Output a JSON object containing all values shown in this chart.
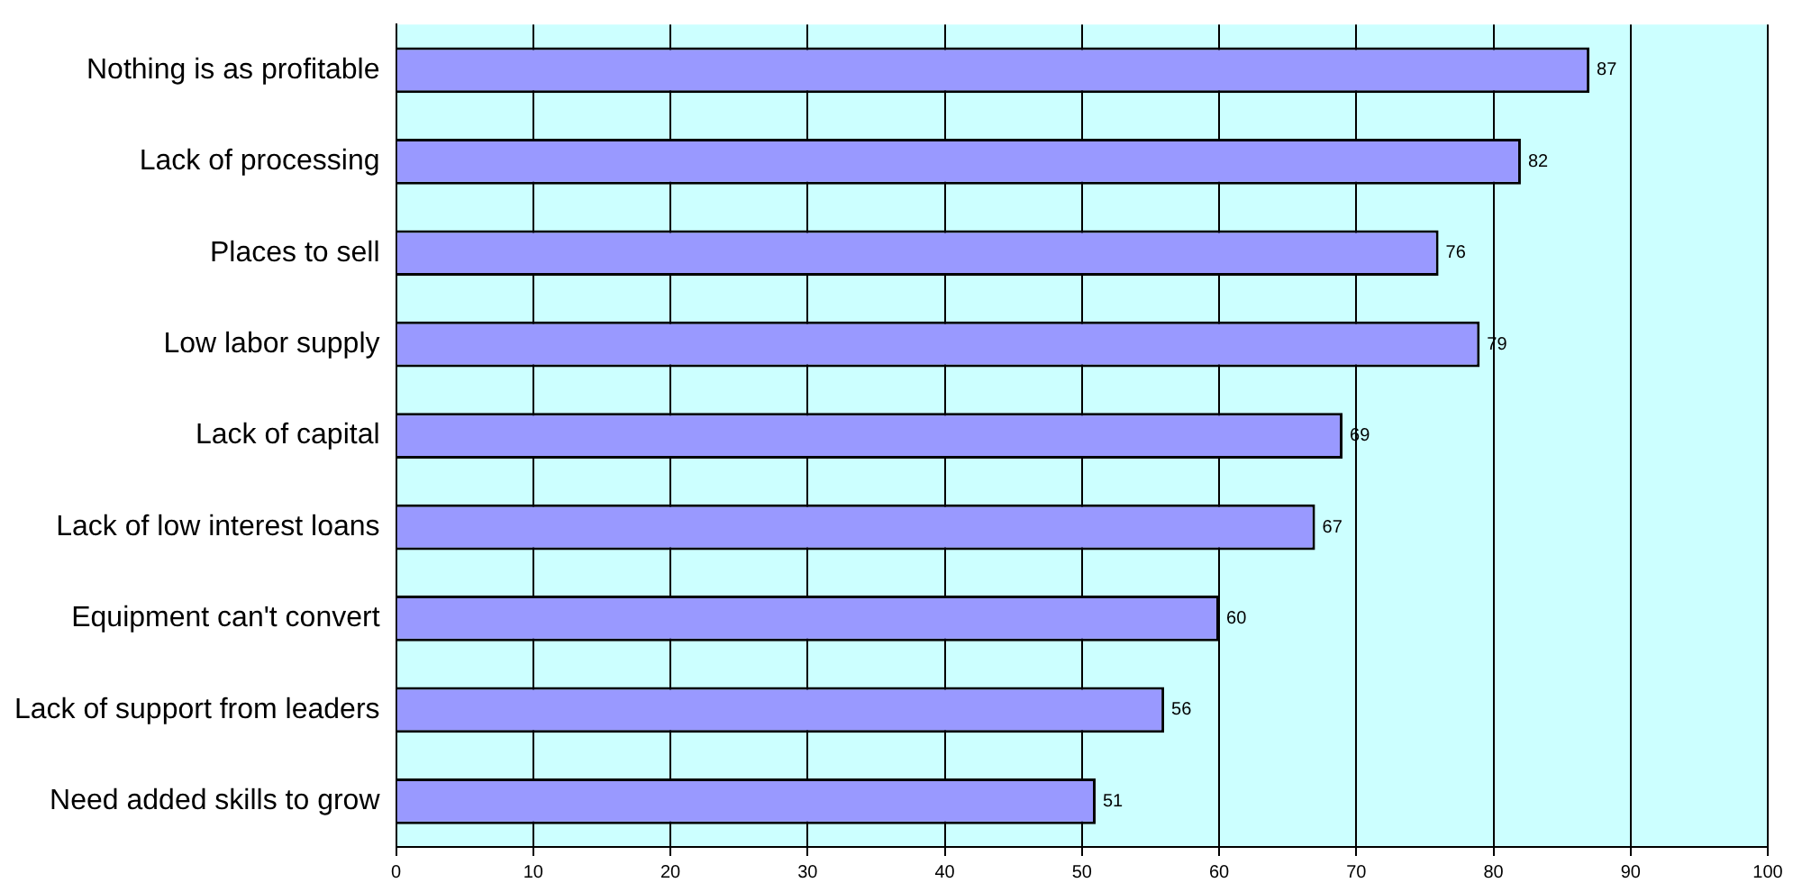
{
  "chart_data": {
    "type": "bar",
    "orientation": "horizontal",
    "categories": [
      "Nothing is as profitable",
      "Lack of processing",
      "Places to sell",
      "Low labor supply",
      "Lack of capital",
      "Lack of low interest loans",
      "Equipment can't convert",
      "Lack of support from leaders",
      "Need added skills to grow"
    ],
    "values": [
      87,
      82,
      76,
      79,
      69,
      67,
      60,
      56,
      51
    ],
    "color": "#9999ff",
    "xlim": [
      0,
      100
    ],
    "xticks": [
      0,
      10,
      20,
      30,
      40,
      50,
      60,
      70,
      80,
      90,
      100
    ],
    "grid": "x",
    "legend": false,
    "data_labels": true
  }
}
